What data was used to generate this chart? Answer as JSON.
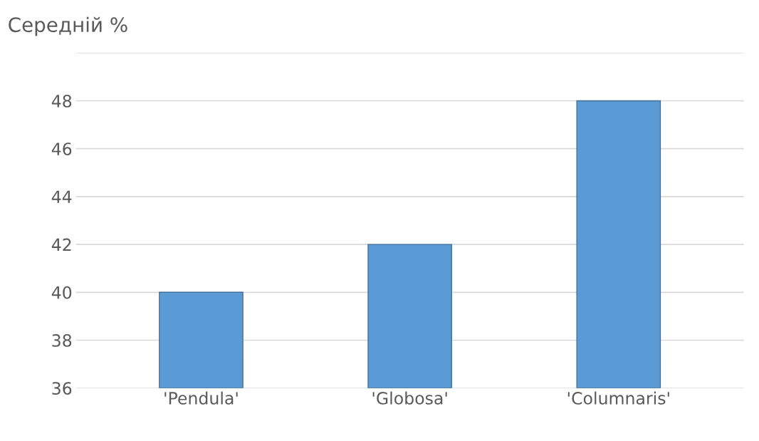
{
  "chart_data": {
    "type": "bar",
    "title": "Середній %",
    "categories": [
      "'Pendula'",
      "'Globosa'",
      "'Columnaris'"
    ],
    "values": [
      40,
      42,
      48
    ],
    "color": "#5b9bd5",
    "ylim": [
      36,
      50
    ],
    "yticks": [
      36,
      38,
      40,
      42,
      44,
      46,
      48,
      {
        "value": 50,
        "label": null
      }
    ],
    "grid": "y"
  }
}
